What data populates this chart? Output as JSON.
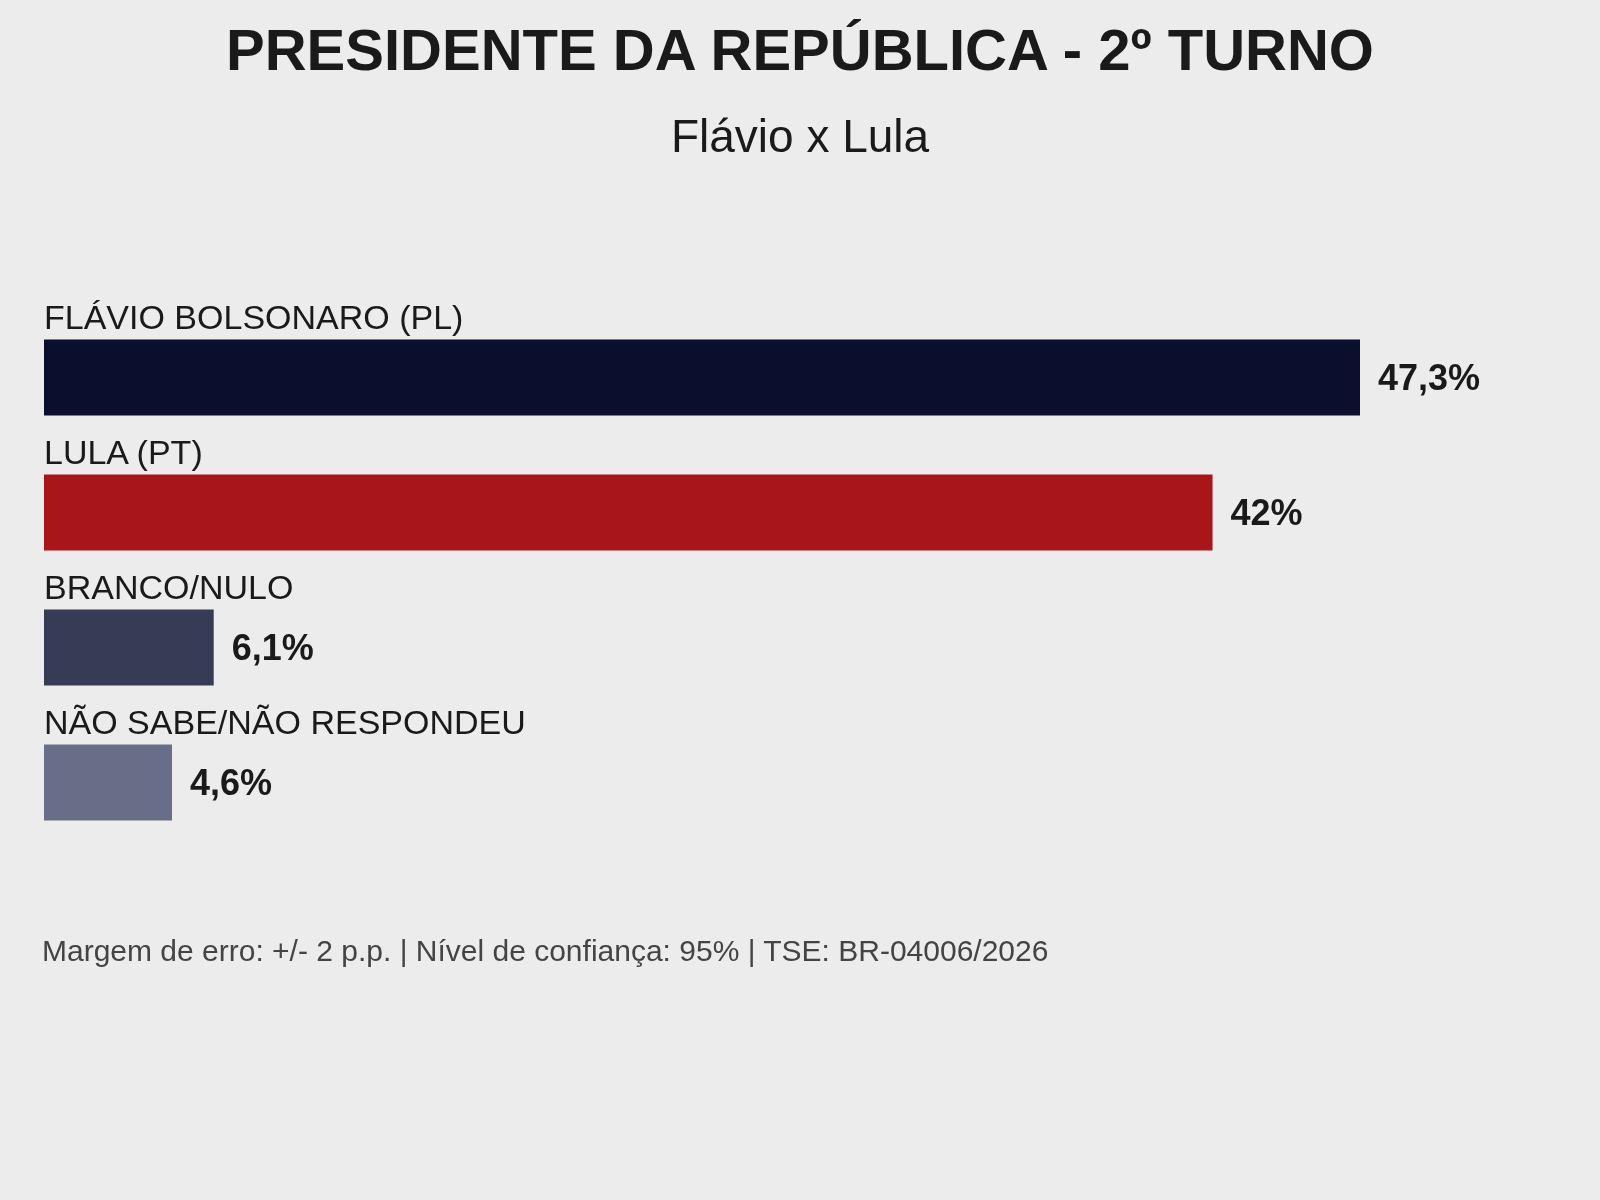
{
  "chart_data": {
    "type": "bar",
    "orientation": "horizontal",
    "title": "PRESIDENTE DA REPÚBLICA - 2º TURNO",
    "subtitle": "Flávio x Lula",
    "categories": [
      "FLÁVIO BOLSONARO (PL)",
      "LULA (PT)",
      "BRANCO/NULO",
      "NÃO SABE/NÃO RESPONDEU"
    ],
    "values": [
      47.3,
      42,
      6.1,
      4.6
    ],
    "value_labels": [
      "47,3%",
      "42%",
      "6,1%",
      "4,6%"
    ],
    "colors": [
      "#0b0f2e",
      "#a8161a",
      "#363c55",
      "#686e88"
    ],
    "annotations": [
      "Margem de erro: +/- 2 p.p. | Nível de confiança: 95% | TSE: BR-04006/2026"
    ]
  }
}
